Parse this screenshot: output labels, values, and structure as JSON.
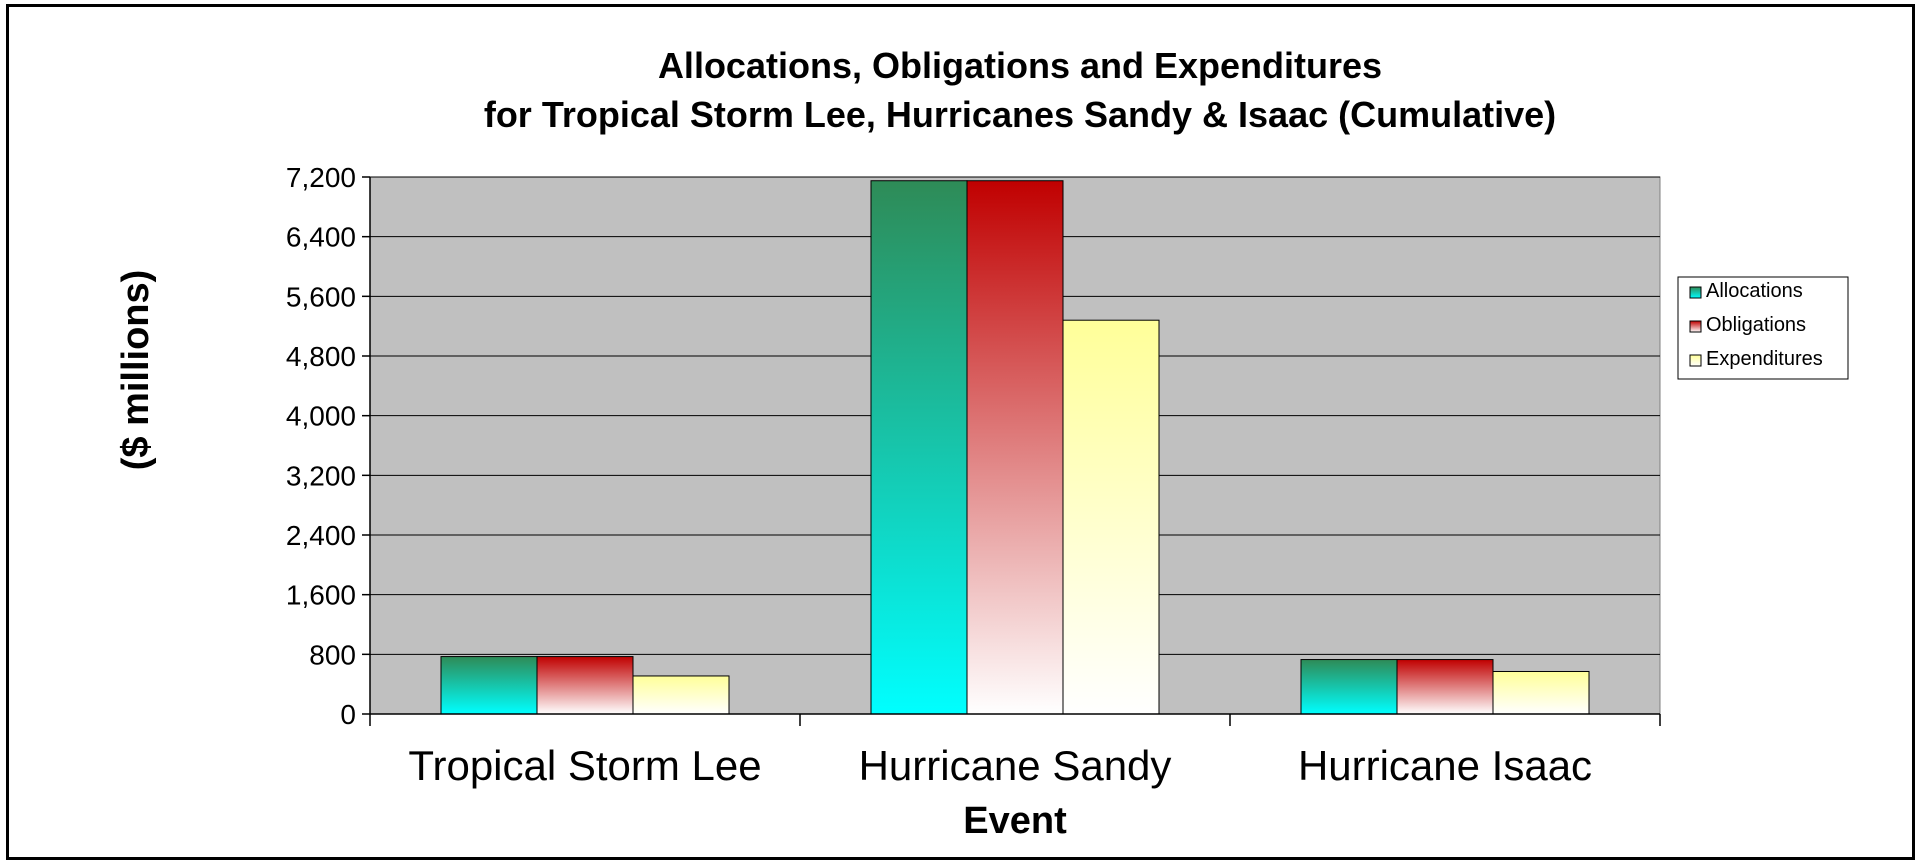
{
  "chart_data": {
    "type": "bar",
    "title": [
      "Allocations, Obligations and Expenditures",
      "for Tropical Storm Lee, Hurricanes Sandy & Isaac (Cumulative)"
    ],
    "xlabel": "Event",
    "ylabel": "($ millions)",
    "categories": [
      "Tropical Storm Lee",
      "Hurricane Sandy",
      "Hurricane Isaac"
    ],
    "ylim": [
      0,
      7200
    ],
    "yticks": [
      0,
      800,
      1600,
      2400,
      3200,
      4000,
      4800,
      5600,
      6400,
      7200
    ],
    "ytick_labels": [
      "0",
      "800",
      "1,600",
      "2,400",
      "3,200",
      "4,000",
      "4,800",
      "5,600",
      "6,400",
      "7,200"
    ],
    "grid": true,
    "legend_position": "right",
    "series": [
      {
        "name": "Allocations",
        "values": [
          770,
          7150,
          730
        ],
        "color_top": "#2e8b57",
        "color_bottom": "#00ffff"
      },
      {
        "name": "Obligations",
        "values": [
          770,
          7150,
          730
        ],
        "color_top": "#c00000",
        "color_bottom": "#ffffff"
      },
      {
        "name": "Expenditures",
        "values": [
          510,
          5280,
          570
        ],
        "color_top": "#ffff99",
        "color_bottom": "#ffffff"
      }
    ],
    "plot_background": "#c0c0c0"
  }
}
